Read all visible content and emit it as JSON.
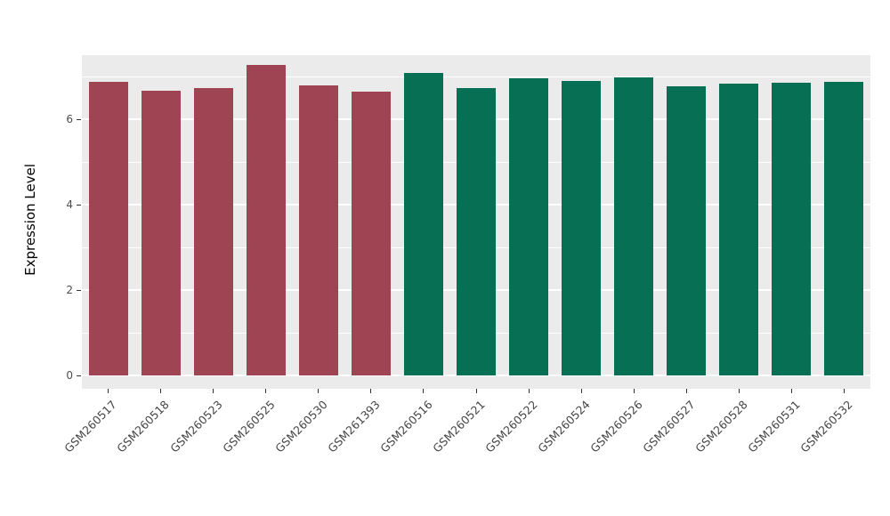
{
  "figure": {
    "background": "#ffffff",
    "panel_background": "#EBEBEB",
    "grid_color": "#FFFFFF",
    "axis_text_color": "#4D4D4D",
    "axis_title_color": "#000000"
  },
  "chart_data": {
    "type": "bar",
    "title": "",
    "xlabel": "",
    "ylabel": "Expression Level",
    "ylim": [
      0,
      7.5
    ],
    "yticks": [
      0,
      2,
      4,
      6
    ],
    "yticks_minor": [
      1,
      3,
      5,
      7
    ],
    "grid": "on",
    "legend": "none",
    "categories": [
      "GSM260517",
      "GSM260518",
      "GSM260523",
      "GSM260525",
      "GSM260530",
      "GSM261393",
      "GSM260516",
      "GSM260521",
      "GSM260522",
      "GSM260524",
      "GSM260526",
      "GSM260527",
      "GSM260528",
      "GSM260531",
      "GSM260532"
    ],
    "values": [
      6.88,
      6.67,
      6.73,
      7.28,
      6.8,
      6.65,
      7.08,
      6.73,
      6.96,
      6.9,
      6.98,
      6.77,
      6.84,
      6.86,
      6.88
    ],
    "groups": [
      "red",
      "red",
      "red",
      "red",
      "red",
      "red",
      "green",
      "green",
      "green",
      "green",
      "green",
      "green",
      "green",
      "green",
      "green"
    ],
    "colors": {
      "red": "#9E4452",
      "green": "#077054"
    }
  }
}
